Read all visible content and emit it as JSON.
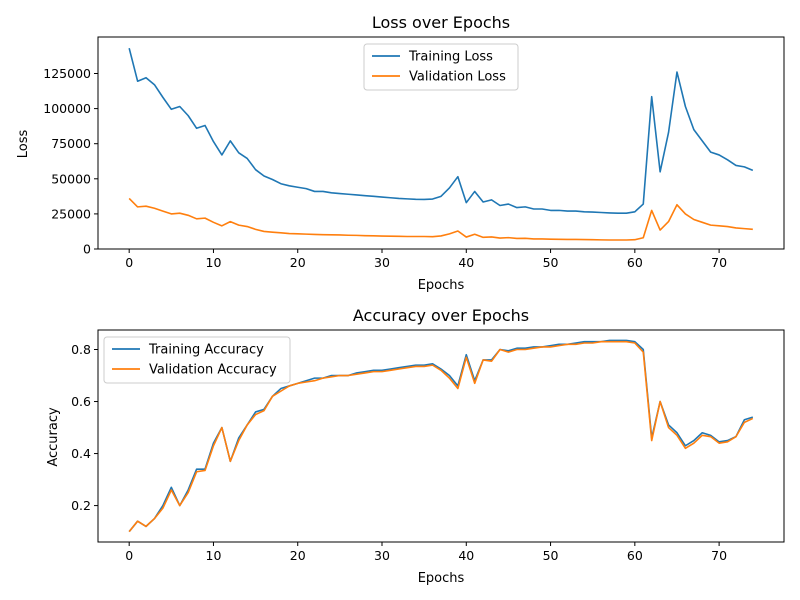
{
  "colors": {
    "blue": "#1f77b4",
    "orange": "#ff7f0e"
  },
  "chart_data": [
    {
      "type": "line",
      "title": "Loss over Epochs",
      "xlabel": "Epochs",
      "ylabel": "Loss",
      "xlim": [
        -3.7,
        77.7
      ],
      "ylim": [
        0,
        151000
      ],
      "xticks": [
        0,
        10,
        20,
        30,
        40,
        50,
        60,
        70
      ],
      "yticks": [
        0,
        25000,
        50000,
        75000,
        100000,
        125000
      ],
      "ytick_labels": [
        "0",
        "25000",
        "50000",
        "75000",
        "100000",
        "125000"
      ],
      "grid": false,
      "legend_position": "top-center",
      "x": [
        0,
        1,
        2,
        3,
        4,
        5,
        6,
        7,
        8,
        9,
        10,
        11,
        12,
        13,
        14,
        15,
        16,
        17,
        18,
        19,
        20,
        21,
        22,
        23,
        24,
        25,
        26,
        27,
        28,
        29,
        30,
        31,
        32,
        33,
        34,
        35,
        36,
        37,
        38,
        39,
        40,
        41,
        42,
        43,
        44,
        45,
        46,
        47,
        48,
        49,
        50,
        51,
        52,
        53,
        54,
        55,
        56,
        57,
        58,
        59,
        60,
        61,
        62,
        63,
        64,
        65,
        66,
        67,
        68,
        69,
        70,
        71,
        72,
        73,
        74
      ],
      "series": [
        {
          "name": "Training Loss",
          "color": "#1f77b4",
          "values": [
            143000,
            119500,
            122000,
            117000,
            108000,
            99500,
            101500,
            95000,
            86000,
            88000,
            76500,
            67000,
            77000,
            68500,
            64500,
            56500,
            52000,
            49500,
            46500,
            45000,
            44000,
            43000,
            41000,
            41000,
            40000,
            39500,
            39000,
            38500,
            38000,
            37500,
            37000,
            36500,
            36000,
            35700,
            35400,
            35300,
            35600,
            37500,
            43500,
            51500,
            33000,
            41000,
            33500,
            35000,
            31000,
            32000,
            29500,
            30000,
            28500,
            28500,
            27500,
            27500,
            27000,
            27000,
            26500,
            26300,
            26000,
            25700,
            25500,
            25500,
            26500,
            32000,
            108500,
            55000,
            83000,
            126000,
            101500,
            85000,
            77000,
            69000,
            67000,
            63500,
            59500,
            58500,
            56000
          ]
        },
        {
          "name": "Validation Loss",
          "color": "#ff7f0e",
          "values": [
            36000,
            30000,
            30500,
            29000,
            27000,
            25000,
            25500,
            24000,
            21500,
            22000,
            19000,
            16500,
            19500,
            17000,
            16000,
            14000,
            12500,
            12000,
            11500,
            11000,
            10800,
            10600,
            10400,
            10200,
            10100,
            10000,
            9800,
            9700,
            9500,
            9400,
            9200,
            9100,
            9000,
            8900,
            8900,
            8900,
            8800,
            9300,
            10800,
            12800,
            8500,
            10500,
            8300,
            8600,
            7800,
            8100,
            7500,
            7600,
            7200,
            7200,
            7000,
            6900,
            6800,
            6800,
            6700,
            6600,
            6500,
            6400,
            6400,
            6400,
            6600,
            8000,
            27500,
            13500,
            19500,
            31500,
            25000,
            21000,
            19000,
            17000,
            16500,
            16000,
            15000,
            14500,
            14000
          ]
        }
      ]
    },
    {
      "type": "line",
      "title": "Accuracy over Epochs",
      "xlabel": "Epochs",
      "ylabel": "Accuracy",
      "xlim": [
        -3.7,
        77.7
      ],
      "ylim": [
        0.06,
        0.875
      ],
      "xticks": [
        0,
        10,
        20,
        30,
        40,
        50,
        60,
        70
      ],
      "yticks": [
        0.2,
        0.4,
        0.6,
        0.8
      ],
      "ytick_labels": [
        "0.2",
        "0.4",
        "0.6",
        "0.8"
      ],
      "grid": false,
      "legend_position": "top-left",
      "x": [
        0,
        1,
        2,
        3,
        4,
        5,
        6,
        7,
        8,
        9,
        10,
        11,
        12,
        13,
        14,
        15,
        16,
        17,
        18,
        19,
        20,
        21,
        22,
        23,
        24,
        25,
        26,
        27,
        28,
        29,
        30,
        31,
        32,
        33,
        34,
        35,
        36,
        37,
        38,
        39,
        40,
        41,
        42,
        43,
        44,
        45,
        46,
        47,
        48,
        49,
        50,
        51,
        52,
        53,
        54,
        55,
        56,
        57,
        58,
        59,
        60,
        61,
        62,
        63,
        64,
        65,
        66,
        67,
        68,
        69,
        70,
        71,
        72,
        73,
        74
      ],
      "series": [
        {
          "name": "Training Accuracy",
          "color": "#1f77b4",
          "values": [
            0.1,
            0.14,
            0.12,
            0.15,
            0.2,
            0.27,
            0.2,
            0.26,
            0.34,
            0.34,
            0.44,
            0.5,
            0.37,
            0.46,
            0.51,
            0.56,
            0.57,
            0.62,
            0.65,
            0.66,
            0.67,
            0.68,
            0.69,
            0.69,
            0.7,
            0.7,
            0.7,
            0.71,
            0.715,
            0.72,
            0.72,
            0.725,
            0.73,
            0.735,
            0.74,
            0.74,
            0.745,
            0.725,
            0.7,
            0.66,
            0.78,
            0.68,
            0.76,
            0.76,
            0.8,
            0.795,
            0.805,
            0.805,
            0.81,
            0.81,
            0.815,
            0.82,
            0.82,
            0.825,
            0.83,
            0.83,
            0.83,
            0.835,
            0.835,
            0.835,
            0.83,
            0.8,
            0.46,
            0.6,
            0.51,
            0.48,
            0.43,
            0.45,
            0.48,
            0.47,
            0.445,
            0.45,
            0.465,
            0.53,
            0.54
          ]
        },
        {
          "name": "Validation Accuracy",
          "color": "#ff7f0e",
          "values": [
            0.1,
            0.14,
            0.12,
            0.15,
            0.19,
            0.26,
            0.2,
            0.25,
            0.33,
            0.335,
            0.43,
            0.5,
            0.37,
            0.45,
            0.51,
            0.55,
            0.565,
            0.62,
            0.64,
            0.66,
            0.67,
            0.675,
            0.68,
            0.69,
            0.695,
            0.7,
            0.7,
            0.705,
            0.71,
            0.715,
            0.715,
            0.72,
            0.725,
            0.73,
            0.735,
            0.735,
            0.74,
            0.72,
            0.69,
            0.65,
            0.77,
            0.67,
            0.76,
            0.755,
            0.8,
            0.79,
            0.8,
            0.8,
            0.805,
            0.81,
            0.81,
            0.815,
            0.82,
            0.82,
            0.825,
            0.825,
            0.83,
            0.83,
            0.83,
            0.83,
            0.825,
            0.79,
            0.45,
            0.6,
            0.5,
            0.47,
            0.42,
            0.44,
            0.47,
            0.465,
            0.44,
            0.445,
            0.465,
            0.52,
            0.535
          ]
        }
      ]
    }
  ]
}
